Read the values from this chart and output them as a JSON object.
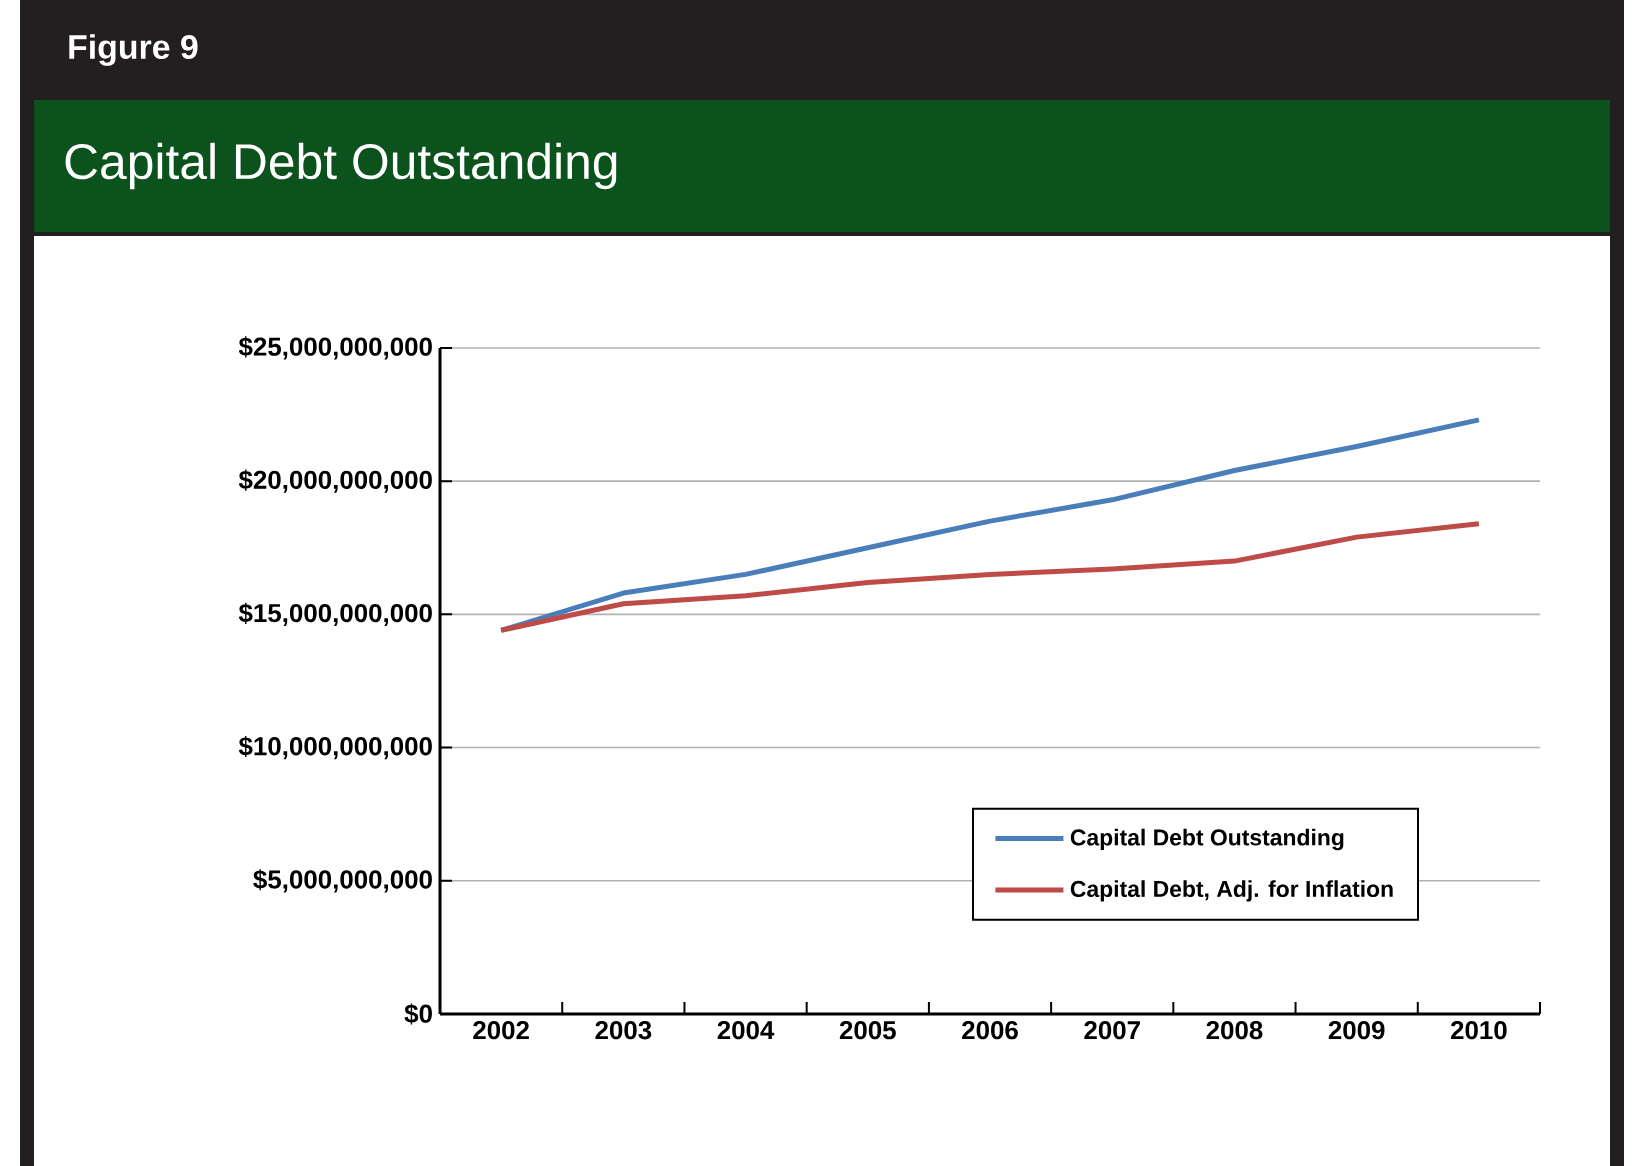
{
  "chart_data": {
    "type": "line",
    "title": "Capital Debt Outstanding",
    "annotations": [
      "Figure 9"
    ],
    "categories": [
      "2002",
      "2003",
      "2004",
      "2005",
      "2006",
      "2007",
      "2008",
      "2009",
      "2010"
    ],
    "series": [
      {
        "name": "Capital Debt Outstanding",
        "color": "#4a7ebb",
        "values": [
          14400000000,
          15800000000,
          16500000000,
          17500000000,
          18500000000,
          19300000000,
          20400000000,
          21300000000,
          22300000000
        ]
      },
      {
        "name": "Capital Debt, Adj. for Inflation",
        "color": "#be4b48",
        "values": [
          14400000000,
          15400000000,
          15700000000,
          16200000000,
          16500000000,
          16700000000,
          17000000000,
          17900000000,
          18400000000
        ]
      }
    ],
    "ylim": [
      0,
      25000000000
    ],
    "yticks": [
      {
        "value": 0,
        "label": "$0"
      },
      {
        "value": 5000000000,
        "label": "$5,000,000,000"
      },
      {
        "value": 10000000000,
        "label": "$10,000,000,000"
      },
      {
        "value": 15000000000,
        "label": "$15,000,000,000"
      },
      {
        "value": 20000000000,
        "label": "$20,000,000,000"
      },
      {
        "value": 25000000000,
        "label": "$25,000,000,000"
      }
    ],
    "grid": "y",
    "legend": "bottom right",
    "marker": "none",
    "line_style": "solid"
  }
}
